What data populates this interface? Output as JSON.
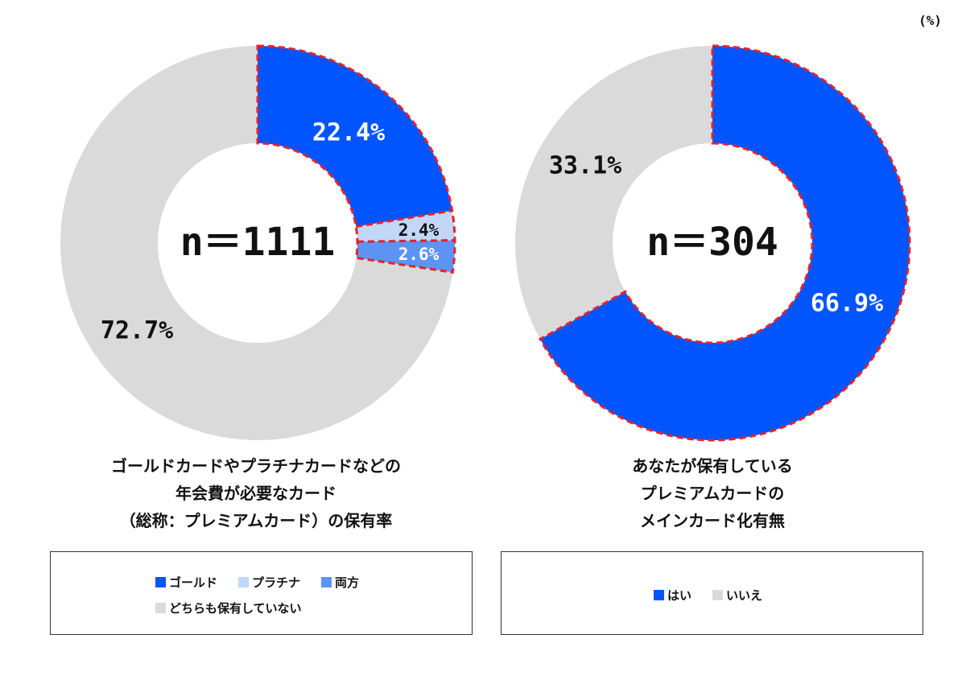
{
  "unit": "(%)",
  "chart_data": [
    {
      "type": "pie",
      "donut": true,
      "center_label": "n＝1111",
      "categories": [
        "ゴールド",
        "プラチナ",
        "両方",
        "どちらも保有していない"
      ],
      "values": [
        22.4,
        2.4,
        2.6,
        72.7
      ],
      "value_labels": [
        "22.4%",
        "2.4%",
        "2.6%",
        "72.7%"
      ],
      "colors": [
        "#0055ff",
        "#c2d7f7",
        "#5d93f3",
        "#dadada"
      ],
      "label_colors": [
        "#ffffff",
        "#111111",
        "#ffffff",
        "#111111"
      ],
      "title_lines": [
        "ゴールドカードやプラチナカードなどの",
        "年会費が必要なカード",
        "（総称：プレミアムカード）の保有率"
      ],
      "legend_rows": [
        [
          "ゴールド",
          "プラチナ",
          "両方"
        ],
        [
          "どちらも保有していない"
        ]
      ]
    },
    {
      "type": "pie",
      "donut": true,
      "center_label": "n＝304",
      "categories": [
        "はい",
        "いいえ"
      ],
      "values": [
        66.9,
        33.1
      ],
      "value_labels": [
        "66.9%",
        "33.1%"
      ],
      "colors": [
        "#0055ff",
        "#dadada"
      ],
      "label_colors": [
        "#ffffff",
        "#111111"
      ],
      "title_lines": [
        "あなたが保有している",
        "プレミアムカードの",
        "メインカード化有無"
      ],
      "legend_rows": [
        [
          "はい",
          "いいえ"
        ]
      ]
    }
  ],
  "highlight": {
    "outline_color": "#e8202a"
  }
}
